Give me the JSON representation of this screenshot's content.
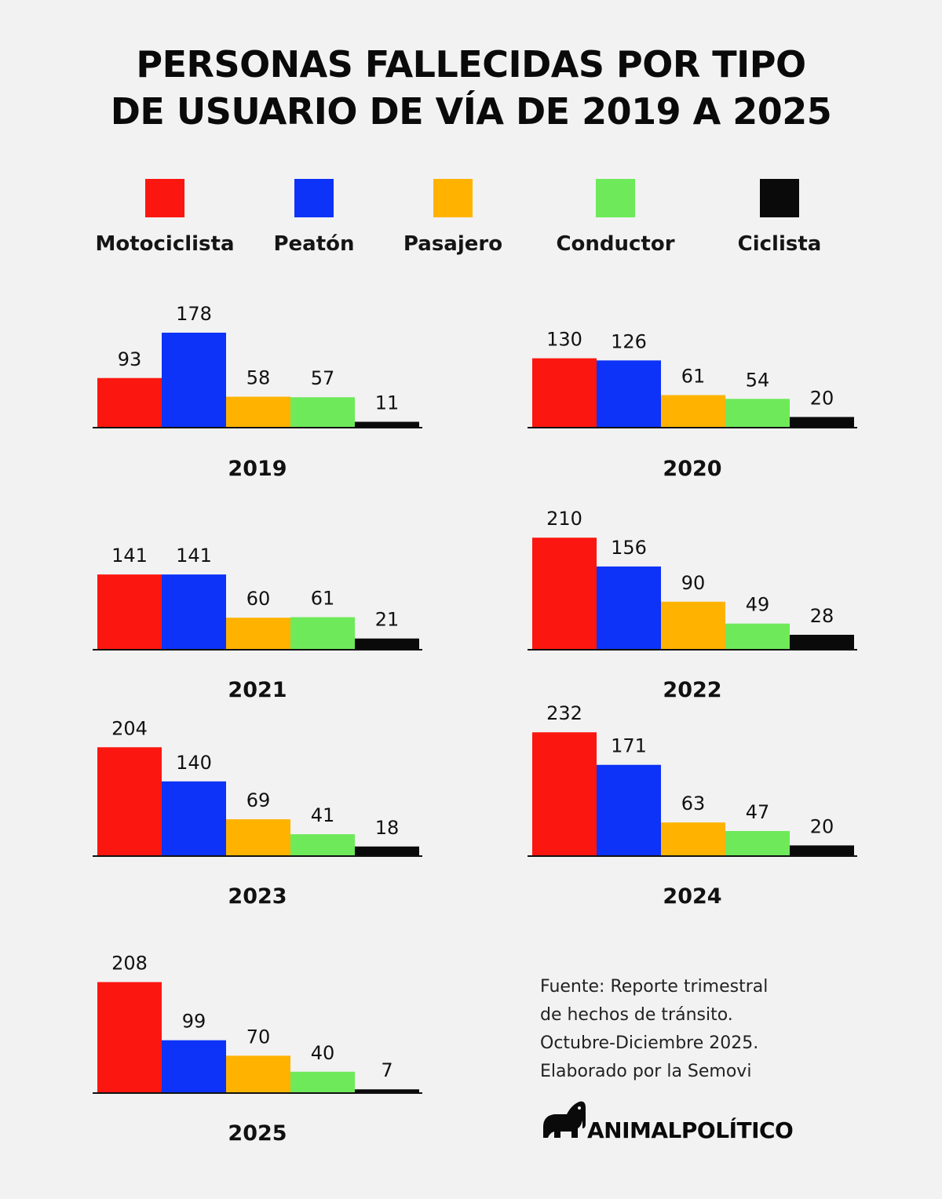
{
  "title": {
    "line1": "PERSONAS FALLECIDAS POR TIPO",
    "line2": "DE USUARIO DE VÍA DE 2019 A 2025"
  },
  "legend": [
    {
      "label": "Motociclista",
      "color": "#fb1710"
    },
    {
      "label": "Peatón",
      "color": "#0c33f7"
    },
    {
      "label": "Pasajero",
      "color": "#ffb300"
    },
    {
      "label": "Conductor",
      "color": "#6ee95a"
    },
    {
      "label": "Ciclista",
      "color": "#0a0a0a"
    }
  ],
  "chart_data": [
    {
      "type": "bar",
      "title": "2019",
      "categories": [
        "Motociclista",
        "Peatón",
        "Pasajero",
        "Conductor",
        "Ciclista"
      ],
      "values": [
        93,
        178,
        58,
        57,
        11
      ]
    },
    {
      "type": "bar",
      "title": "2020",
      "categories": [
        "Motociclista",
        "Peatón",
        "Pasajero",
        "Conductor",
        "Ciclista"
      ],
      "values": [
        130,
        126,
        61,
        54,
        20
      ]
    },
    {
      "type": "bar",
      "title": "2021",
      "categories": [
        "Motociclista",
        "Peatón",
        "Pasajero",
        "Conductor",
        "Ciclista"
      ],
      "values": [
        141,
        141,
        60,
        61,
        21
      ]
    },
    {
      "type": "bar",
      "title": "2022",
      "categories": [
        "Motociclista",
        "Peatón",
        "Pasajero",
        "Conductor",
        "Ciclista"
      ],
      "values": [
        210,
        156,
        90,
        49,
        28
      ]
    },
    {
      "type": "bar",
      "title": "2023",
      "categories": [
        "Motociclista",
        "Peatón",
        "Pasajero",
        "Conductor",
        "Ciclista"
      ],
      "values": [
        204,
        140,
        69,
        41,
        18
      ]
    },
    {
      "type": "bar",
      "title": "2024",
      "categories": [
        "Motociclista",
        "Peatón",
        "Pasajero",
        "Conductor",
        "Ciclista"
      ],
      "values": [
        232,
        171,
        63,
        47,
        20
      ]
    },
    {
      "type": "bar",
      "title": "2025",
      "categories": [
        "Motociclista",
        "Peatón",
        "Pasajero",
        "Conductor",
        "Ciclista"
      ],
      "values": [
        208,
        99,
        70,
        40,
        7
      ]
    }
  ],
  "source": {
    "line1": "Fuente: Reporte trimestral",
    "line2": "de hechos de tránsito.",
    "line3": "Octubre-Diciembre 2025.",
    "line4": "Elaborado por la Semovi"
  },
  "brand": {
    "name": "ANIMALPOLÍTICO"
  }
}
